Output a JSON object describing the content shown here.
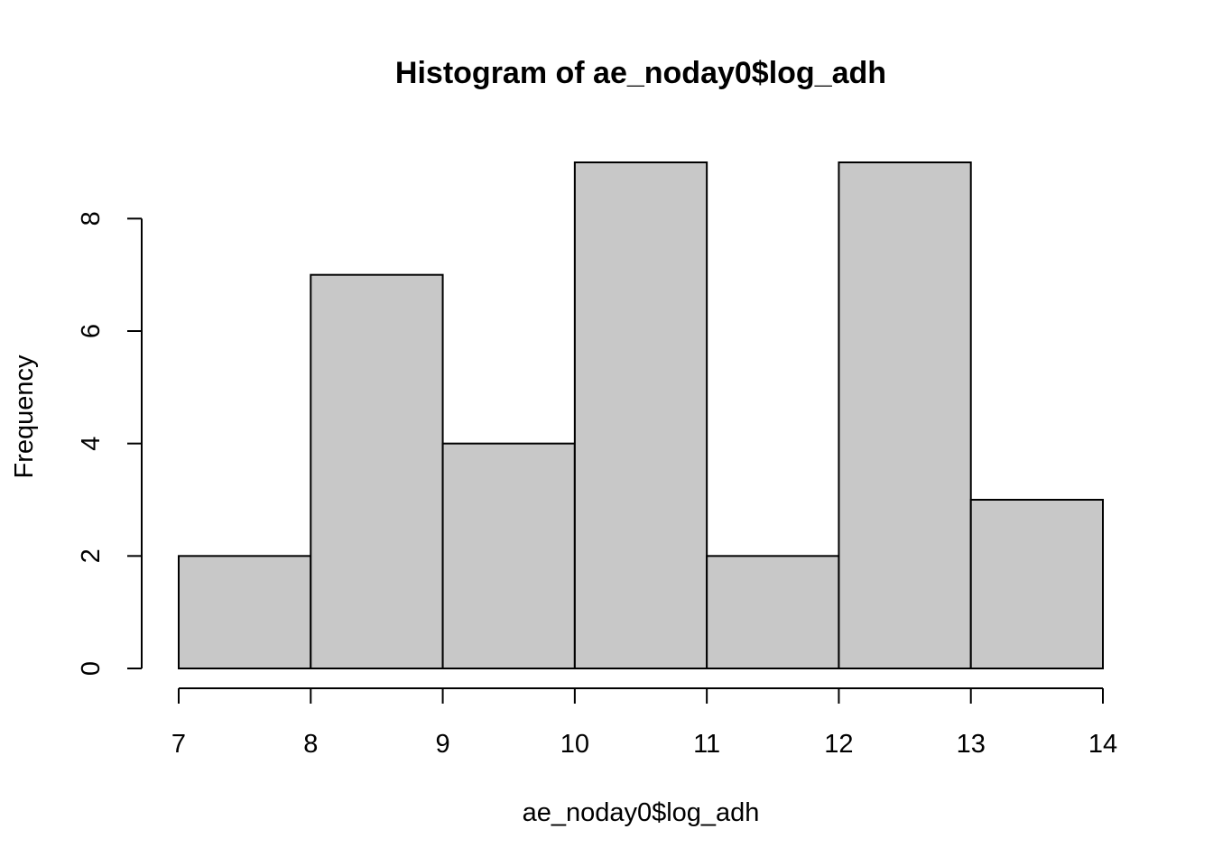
{
  "chart_data": {
    "type": "bar",
    "title": "Histogram of ae_noday0$log_adh",
    "xlabel": "ae_noday0$log_adh",
    "ylabel": "Frequency",
    "bin_edges": [
      7,
      8,
      9,
      10,
      11,
      12,
      13,
      14
    ],
    "values": [
      2,
      7,
      4,
      9,
      2,
      9,
      3
    ],
    "xlim": [
      7,
      14
    ],
    "ylim": [
      0,
      9
    ],
    "x_ticks": [
      "7",
      "8",
      "9",
      "10",
      "11",
      "12",
      "13",
      "14"
    ],
    "y_ticks": [
      "0",
      "2",
      "4",
      "6",
      "8"
    ],
    "bar_fill": "#c8c8c8",
    "grid": false,
    "legend": "none"
  }
}
